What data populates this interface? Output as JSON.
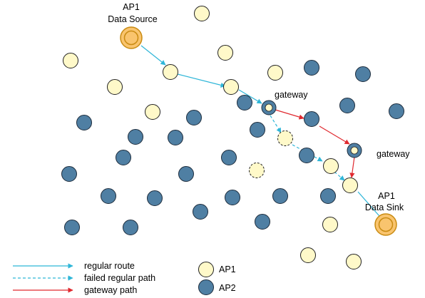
{
  "colors": {
    "ap1_fill": "#fff9c9",
    "ap2_fill": "#4f7fa3",
    "special_fill": "#f9c46e",
    "special_ring": "#c98b12",
    "regular_route": "#2fb6d8",
    "failed_path": "#2fb6d8",
    "gateway_path": "#e0292f"
  },
  "labels": {
    "source_line1": "AP1",
    "source_line2": "Data Source",
    "gateway_top": "gateway",
    "gateway_right": "gateway",
    "sink_line1": "AP1",
    "sink_line2": "Data Sink"
  },
  "legend": {
    "regular_route": "regular route",
    "failed_regular_path": "failed regular path",
    "gateway_path": "gateway path",
    "ap1": "AP1",
    "ap2": "AP2"
  }
}
